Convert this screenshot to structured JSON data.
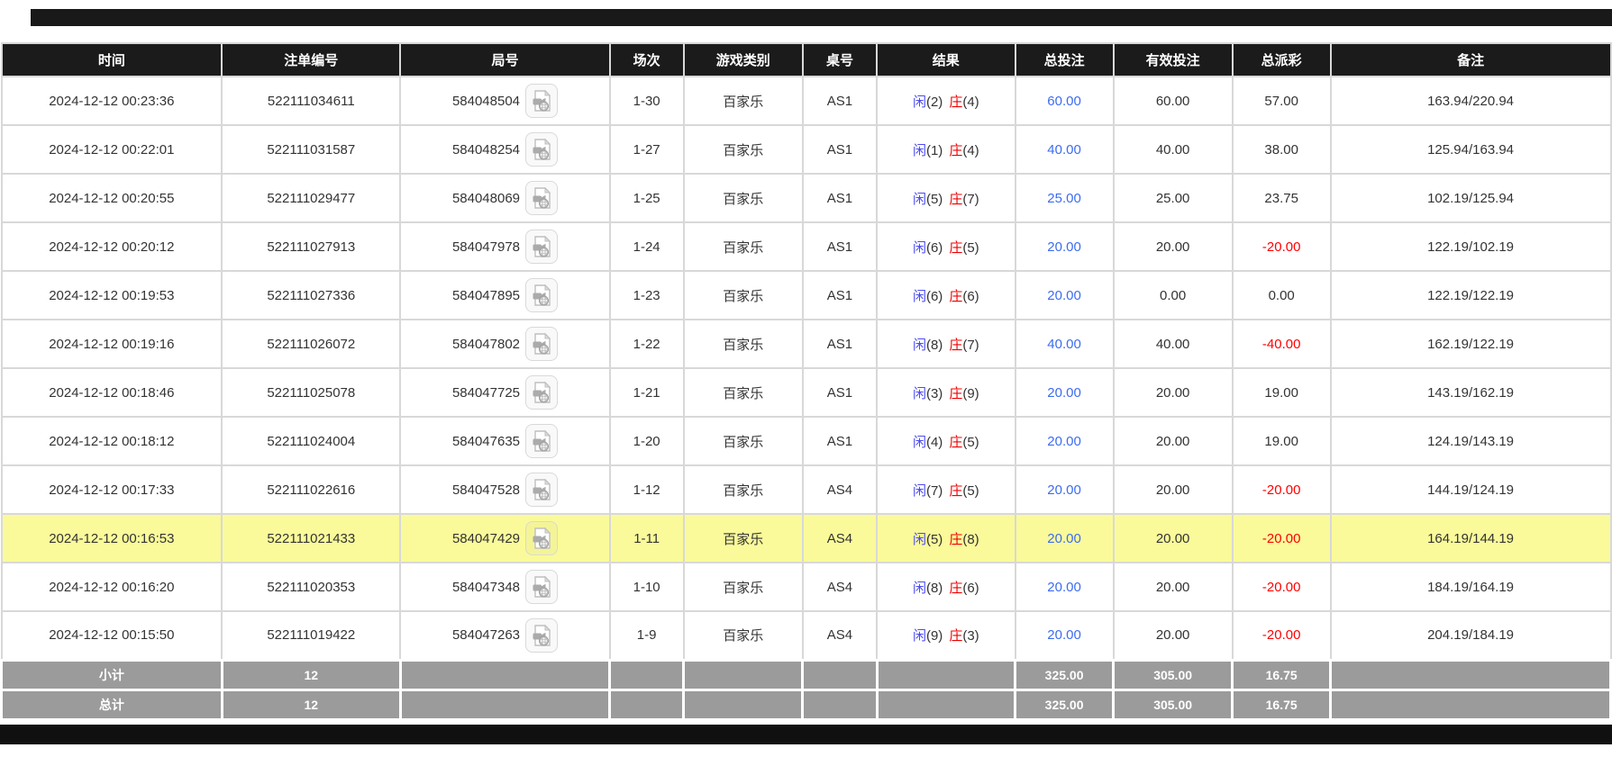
{
  "table": {
    "columns": [
      {
        "key": "time",
        "label": "时间"
      },
      {
        "key": "bet_id",
        "label": "注单编号"
      },
      {
        "key": "round_id",
        "label": "局号"
      },
      {
        "key": "session",
        "label": "场次"
      },
      {
        "key": "game_type",
        "label": "游戏类别"
      },
      {
        "key": "table_no",
        "label": "桌号"
      },
      {
        "key": "result",
        "label": "结果"
      },
      {
        "key": "total_bet",
        "label": "总投注"
      },
      {
        "key": "valid_bet",
        "label": "有效投注"
      },
      {
        "key": "total_payout",
        "label": "总派彩"
      },
      {
        "key": "remark",
        "label": "备注"
      }
    ],
    "rows": [
      {
        "time": "2024-12-12 00:23:36",
        "bet_id": "522111034611",
        "round_id": "584048504",
        "session": "1-30",
        "game_type": "百家乐",
        "table_no": "AS1",
        "result": {
          "player": "闲",
          "player_n": "(2)",
          "banker": "庄",
          "banker_n": "(4)"
        },
        "total_bet": "60.00",
        "valid_bet": "60.00",
        "total_payout": "57.00",
        "remark": "163.94/220.94",
        "highlighted": false
      },
      {
        "time": "2024-12-12 00:22:01",
        "bet_id": "522111031587",
        "round_id": "584048254",
        "session": "1-27",
        "game_type": "百家乐",
        "table_no": "AS1",
        "result": {
          "player": "闲",
          "player_n": "(1)",
          "banker": "庄",
          "banker_n": "(4)"
        },
        "total_bet": "40.00",
        "valid_bet": "40.00",
        "total_payout": "38.00",
        "remark": "125.94/163.94",
        "highlighted": false
      },
      {
        "time": "2024-12-12 00:20:55",
        "bet_id": "522111029477",
        "round_id": "584048069",
        "session": "1-25",
        "game_type": "百家乐",
        "table_no": "AS1",
        "result": {
          "player": "闲",
          "player_n": "(5)",
          "banker": "庄",
          "banker_n": "(7)"
        },
        "total_bet": "25.00",
        "valid_bet": "25.00",
        "total_payout": "23.75",
        "remark": "102.19/125.94",
        "highlighted": false
      },
      {
        "time": "2024-12-12 00:20:12",
        "bet_id": "522111027913",
        "round_id": "584047978",
        "session": "1-24",
        "game_type": "百家乐",
        "table_no": "AS1",
        "result": {
          "player": "闲",
          "player_n": "(6)",
          "banker": "庄",
          "banker_n": "(5)"
        },
        "total_bet": "20.00",
        "valid_bet": "20.00",
        "total_payout": "-20.00",
        "remark": "122.19/102.19",
        "highlighted": false
      },
      {
        "time": "2024-12-12 00:19:53",
        "bet_id": "522111027336",
        "round_id": "584047895",
        "session": "1-23",
        "game_type": "百家乐",
        "table_no": "AS1",
        "result": {
          "player": "闲",
          "player_n": "(6)",
          "banker": "庄",
          "banker_n": "(6)"
        },
        "total_bet": "20.00",
        "valid_bet": "0.00",
        "total_payout": "0.00",
        "remark": "122.19/122.19",
        "highlighted": false
      },
      {
        "time": "2024-12-12 00:19:16",
        "bet_id": "522111026072",
        "round_id": "584047802",
        "session": "1-22",
        "game_type": "百家乐",
        "table_no": "AS1",
        "result": {
          "player": "闲",
          "player_n": "(8)",
          "banker": "庄",
          "banker_n": "(7)"
        },
        "total_bet": "40.00",
        "valid_bet": "40.00",
        "total_payout": "-40.00",
        "remark": "162.19/122.19",
        "highlighted": false
      },
      {
        "time": "2024-12-12 00:18:46",
        "bet_id": "522111025078",
        "round_id": "584047725",
        "session": "1-21",
        "game_type": "百家乐",
        "table_no": "AS1",
        "result": {
          "player": "闲",
          "player_n": "(3)",
          "banker": "庄",
          "banker_n": "(9)"
        },
        "total_bet": "20.00",
        "valid_bet": "20.00",
        "total_payout": "19.00",
        "remark": "143.19/162.19",
        "highlighted": false
      },
      {
        "time": "2024-12-12 00:18:12",
        "bet_id": "522111024004",
        "round_id": "584047635",
        "session": "1-20",
        "game_type": "百家乐",
        "table_no": "AS1",
        "result": {
          "player": "闲",
          "player_n": "(4)",
          "banker": "庄",
          "banker_n": "(5)"
        },
        "total_bet": "20.00",
        "valid_bet": "20.00",
        "total_payout": "19.00",
        "remark": "124.19/143.19",
        "highlighted": false
      },
      {
        "time": "2024-12-12 00:17:33",
        "bet_id": "522111022616",
        "round_id": "584047528",
        "session": "1-12",
        "game_type": "百家乐",
        "table_no": "AS4",
        "result": {
          "player": "闲",
          "player_n": "(7)",
          "banker": "庄",
          "banker_n": "(5)"
        },
        "total_bet": "20.00",
        "valid_bet": "20.00",
        "total_payout": "-20.00",
        "remark": "144.19/124.19",
        "highlighted": false
      },
      {
        "time": "2024-12-12 00:16:53",
        "bet_id": "522111021433",
        "round_id": "584047429",
        "session": "1-11",
        "game_type": "百家乐",
        "table_no": "AS4",
        "result": {
          "player": "闲",
          "player_n": "(5)",
          "banker": "庄",
          "banker_n": "(8)"
        },
        "total_bet": "20.00",
        "valid_bet": "20.00",
        "total_payout": "-20.00",
        "remark": "164.19/144.19",
        "highlighted": true
      },
      {
        "time": "2024-12-12 00:16:20",
        "bet_id": "522111020353",
        "round_id": "584047348",
        "session": "1-10",
        "game_type": "百家乐",
        "table_no": "AS4",
        "result": {
          "player": "闲",
          "player_n": "(8)",
          "banker": "庄",
          "banker_n": "(6)"
        },
        "total_bet": "20.00",
        "valid_bet": "20.00",
        "total_payout": "-20.00",
        "remark": "184.19/164.19",
        "highlighted": false
      },
      {
        "time": "2024-12-12 00:15:50",
        "bet_id": "522111019422",
        "round_id": "584047263",
        "session": "1-9",
        "game_type": "百家乐",
        "table_no": "AS4",
        "result": {
          "player": "闲",
          "player_n": "(9)",
          "banker": "庄",
          "banker_n": "(3)"
        },
        "total_bet": "20.00",
        "valid_bet": "20.00",
        "total_payout": "-20.00",
        "remark": "204.19/184.19",
        "highlighted": false
      }
    ],
    "summary_rows": [
      {
        "label": "小计",
        "count": "12",
        "total_bet": "325.00",
        "valid_bet": "305.00",
        "total_payout": "16.75",
        "remark": ""
      },
      {
        "label": "总计",
        "count": "12",
        "total_bet": "325.00",
        "valid_bet": "305.00",
        "total_payout": "16.75",
        "remark": ""
      }
    ]
  },
  "icons": {
    "round_video": "video-file-icon"
  },
  "colors": {
    "header_bg": "#1b1b1b",
    "player_blue": "#4a4af0",
    "banker_red": "#ee0000",
    "bet_link_blue": "#3c6cf0",
    "negative_red": "#ff0000",
    "highlight_yellow": "#fafa9b",
    "summary_gray": "#9b9b9b"
  }
}
